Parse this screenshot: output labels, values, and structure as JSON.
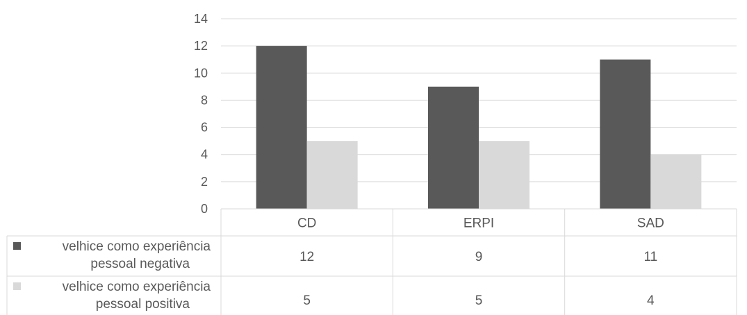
{
  "chart_data": {
    "type": "bar",
    "categories": [
      "CD",
      "ERPI",
      "SAD"
    ],
    "series": [
      {
        "name_lines": [
          "velhice como experiência",
          "pessoal negativa"
        ],
        "values": [
          12,
          9,
          11
        ],
        "color": "#595959"
      },
      {
        "name_lines": [
          "velhice como experiência",
          "pessoal positiva"
        ],
        "values": [
          5,
          5,
          4
        ],
        "color": "#d9d9d9"
      }
    ],
    "y_ticks": [
      "0",
      "2",
      "4",
      "6",
      "8",
      "10",
      "12",
      "14"
    ],
    "ylim": [
      0,
      14
    ],
    "grid": true,
    "data_table": true,
    "legend": "table-row-keys"
  }
}
